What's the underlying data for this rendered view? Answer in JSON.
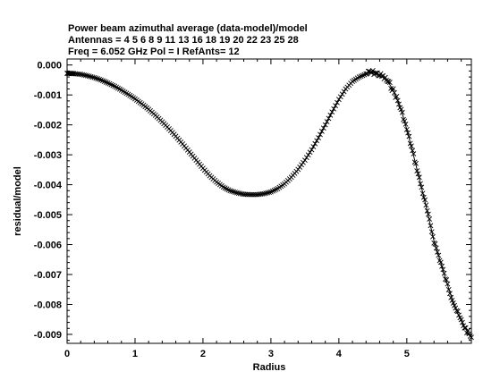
{
  "chart_data": {
    "type": "line",
    "title_lines": [
      "Power beam azimuthal average (data-model)/model",
      "Antennas = 4 5 6 8 9 11 13 16 18 19 20 22 23 25 28",
      "Freq = 6.052 GHz Pol = I  RefAnts= 12"
    ],
    "xlabel": "Radius",
    "ylabel": "residual/model",
    "xlim": [
      0,
      5.95
    ],
    "ylim": [
      -0.0093,
      0.0002
    ],
    "xticks": [
      0,
      1,
      2,
      3,
      4,
      5
    ],
    "xtick_labels": [
      "0",
      "1",
      "2",
      "3",
      "4",
      "5"
    ],
    "yticks": [
      0.0,
      -0.001,
      -0.002,
      -0.003,
      -0.004,
      -0.005,
      -0.006,
      -0.007,
      -0.008,
      -0.009
    ],
    "ytick_labels": [
      "0.000",
      "-0.001",
      "-0.002",
      "-0.003",
      "-0.004",
      "-0.005",
      "-0.006",
      "-0.007",
      "-0.008",
      "-0.009"
    ],
    "marker": "x",
    "grid": false,
    "series": [
      {
        "x": [
          0.0,
          0.05,
          0.1,
          0.2,
          0.3,
          0.4,
          0.5,
          0.6,
          0.7,
          0.8,
          0.9,
          1.0,
          1.1,
          1.2,
          1.3,
          1.4,
          1.5,
          1.6,
          1.7,
          1.8,
          1.9,
          2.0,
          2.1,
          2.2,
          2.3,
          2.4,
          2.5,
          2.6,
          2.7,
          2.8,
          2.9,
          3.0,
          3.1,
          3.2,
          3.3,
          3.4,
          3.5,
          3.6,
          3.7,
          3.8,
          3.9,
          4.0,
          4.1,
          4.2,
          4.3,
          4.4,
          4.45,
          4.5,
          4.55,
          4.6,
          4.65,
          4.7,
          4.75,
          4.8,
          4.85,
          4.9,
          4.95,
          5.0,
          5.05,
          5.1,
          5.15,
          5.2,
          5.25,
          5.3,
          5.35,
          5.4,
          5.45,
          5.5,
          5.55,
          5.6,
          5.65,
          5.7,
          5.75,
          5.8,
          5.85,
          5.9,
          5.95
        ],
        "values": [
          -0.00028,
          -0.00028,
          -0.00029,
          -0.00031,
          -0.00036,
          -0.00042,
          -0.0005,
          -0.0006,
          -0.00071,
          -0.00084,
          -0.00098,
          -0.00113,
          -0.0013,
          -0.00148,
          -0.00168,
          -0.0019,
          -0.00213,
          -0.00238,
          -0.00264,
          -0.00291,
          -0.00318,
          -0.00345,
          -0.0037,
          -0.00391,
          -0.00408,
          -0.0042,
          -0.00427,
          -0.00432,
          -0.00433,
          -0.00433,
          -0.0043,
          -0.00424,
          -0.00413,
          -0.00397,
          -0.00375,
          -0.00349,
          -0.00318,
          -0.00283,
          -0.00243,
          -0.002,
          -0.00157,
          -0.00115,
          -0.0008,
          -0.00055,
          -0.0004,
          -0.0003,
          -0.00025,
          -0.00025,
          -0.00028,
          -0.00033,
          -0.0004,
          -0.0005,
          -0.00065,
          -0.00085,
          -0.0011,
          -0.0014,
          -0.00175,
          -0.00215,
          -0.00258,
          -0.00303,
          -0.00348,
          -0.00395,
          -0.0044,
          -0.00488,
          -0.00538,
          -0.00588,
          -0.00625,
          -0.0066,
          -0.007,
          -0.00735,
          -0.0077,
          -0.008,
          -0.0083,
          -0.00855,
          -0.00875,
          -0.00895,
          -0.0091
        ]
      }
    ]
  }
}
